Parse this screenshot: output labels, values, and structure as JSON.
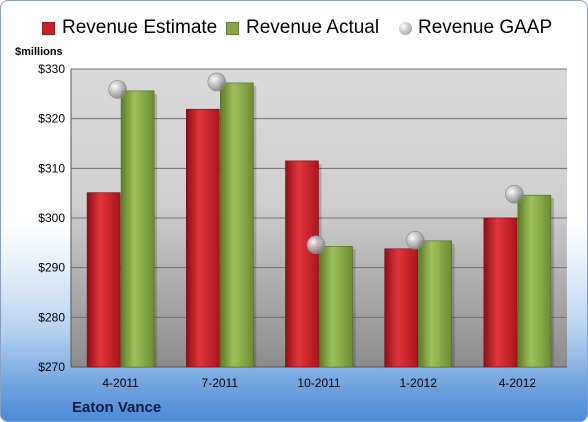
{
  "legend": {
    "estimate": "Revenue Estimate",
    "actual": "Revenue Actual",
    "gaap": "Revenue GAAP"
  },
  "unit_label": "$millions",
  "company": "Eaton Vance",
  "colors": {
    "estimate": "#cc1f27",
    "actual": "#86a844",
    "gaap": "#a8a8a8",
    "plot_bg_top": "#d9d9d9",
    "plot_bg_bottom": "#8c8c8c"
  },
  "chart_data": {
    "type": "bar",
    "categories": [
      "4-2011",
      "7-2011",
      "10-2011",
      "1-2012",
      "4-2012"
    ],
    "series": [
      {
        "name": "Revenue Estimate",
        "values": [
          305.1,
          321.9,
          311.5,
          293.8,
          300.0
        ]
      },
      {
        "name": "Revenue Actual",
        "values": [
          325.6,
          327.2,
          294.3,
          295.4,
          304.6
        ]
      },
      {
        "name": "Revenue GAAP",
        "values": [
          325.9,
          327.4,
          294.6,
          295.5,
          304.8
        ]
      }
    ],
    "ylim": [
      270,
      330
    ],
    "yticks": [
      270,
      280,
      290,
      300,
      310,
      320,
      330
    ],
    "ytick_labels": [
      "$270",
      "$280",
      "$290",
      "$300",
      "$310",
      "$320",
      "$330"
    ],
    "ylabel": "$millions",
    "title": "",
    "xlabel": "",
    "grid": true,
    "legend_position": "top"
  }
}
